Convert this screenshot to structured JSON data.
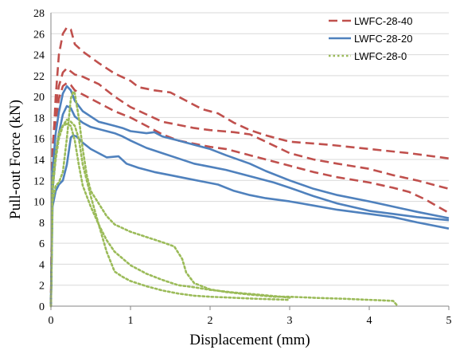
{
  "chart_data": {
    "type": "line",
    "xlabel": "Displacement (mm)",
    "ylabel": "Pull-out Force (kN)",
    "xlim": [
      0,
      5
    ],
    "ylim": [
      0,
      28
    ],
    "xticks": [
      "0",
      "1",
      "2",
      "3",
      "4",
      "5"
    ],
    "yticks": [
      "0",
      "2",
      "4",
      "6",
      "8",
      "10",
      "12",
      "14",
      "16",
      "18",
      "20",
      "22",
      "24",
      "26",
      "28"
    ],
    "grid": "horizontal",
    "legend_position": "top-right",
    "series": [
      {
        "name": "LWFC-28-40",
        "color": "#C0504D",
        "dash": "dashed",
        "curves": [
          [
            [
              0,
              0
            ],
            [
              0.02,
              14
            ],
            [
              0.06,
              20
            ],
            [
              0.1,
              24
            ],
            [
              0.15,
              26
            ],
            [
              0.2,
              26.6
            ],
            [
              0.25,
              26.4
            ],
            [
              0.3,
              25
            ],
            [
              0.4,
              24.3
            ],
            [
              0.6,
              23.2
            ],
            [
              0.8,
              22.2
            ],
            [
              1.0,
              21.5
            ],
            [
              1.1,
              20.9
            ],
            [
              1.3,
              20.6
            ],
            [
              1.5,
              20.4
            ],
            [
              1.7,
              19.6
            ],
            [
              1.9,
              18.8
            ],
            [
              2.1,
              18.4
            ],
            [
              2.3,
              17.5
            ],
            [
              2.5,
              16.8
            ],
            [
              2.7,
              16.3
            ],
            [
              3.0,
              15.7
            ],
            [
              3.5,
              15.4
            ],
            [
              4.0,
              15.0
            ],
            [
              4.5,
              14.6
            ],
            [
              5.0,
              14.1
            ]
          ],
          [
            [
              0,
              0
            ],
            [
              0.02,
              15
            ],
            [
              0.06,
              19
            ],
            [
              0.1,
              21
            ],
            [
              0.15,
              22.3
            ],
            [
              0.2,
              22.7
            ],
            [
              0.25,
              22.4
            ],
            [
              0.3,
              22.1
            ],
            [
              0.4,
              21.9
            ],
            [
              0.6,
              21.2
            ],
            [
              0.8,
              20
            ],
            [
              1.0,
              19
            ],
            [
              1.2,
              18.3
            ],
            [
              1.4,
              17.6
            ],
            [
              1.6,
              17.3
            ],
            [
              1.8,
              17.0
            ],
            [
              2.0,
              16.8
            ],
            [
              2.3,
              16.6
            ],
            [
              2.5,
              16.4
            ],
            [
              2.7,
              15.7
            ],
            [
              3.0,
              14.6
            ],
            [
              3.3,
              14.0
            ],
            [
              3.6,
              13.6
            ],
            [
              4.0,
              13.1
            ],
            [
              4.3,
              12.5
            ],
            [
              4.6,
              12.0
            ],
            [
              5.0,
              11.2
            ]
          ],
          [
            [
              0,
              0
            ],
            [
              0.02,
              14
            ],
            [
              0.06,
              17.5
            ],
            [
              0.1,
              19.8
            ],
            [
              0.15,
              21
            ],
            [
              0.2,
              21.3
            ],
            [
              0.25,
              21.1
            ],
            [
              0.3,
              20.6
            ],
            [
              0.4,
              20.2
            ],
            [
              0.6,
              19.4
            ],
            [
              0.8,
              18.6
            ],
            [
              1.0,
              18.0
            ],
            [
              1.2,
              17.2
            ],
            [
              1.4,
              16.4
            ],
            [
              1.6,
              15.8
            ],
            [
              1.8,
              15.5
            ],
            [
              2.0,
              15.2
            ],
            [
              2.2,
              15.0
            ],
            [
              2.5,
              14.4
            ],
            [
              2.7,
              14.0
            ],
            [
              3.0,
              13.4
            ],
            [
              3.3,
              12.8
            ],
            [
              3.6,
              12.3
            ],
            [
              4.0,
              11.8
            ],
            [
              4.3,
              11.3
            ],
            [
              4.5,
              10.9
            ],
            [
              4.7,
              10.2
            ],
            [
              5.0,
              8.9
            ]
          ]
        ]
      },
      {
        "name": "LWFC-28-20",
        "color": "#4F81BD",
        "dash": "solid",
        "curves": [
          [
            [
              0,
              0
            ],
            [
              0.02,
              13
            ],
            [
              0.06,
              16.5
            ],
            [
              0.1,
              18.5
            ],
            [
              0.15,
              20.3
            ],
            [
              0.2,
              21
            ],
            [
              0.25,
              20.6
            ],
            [
              0.3,
              19.6
            ],
            [
              0.4,
              18.6
            ],
            [
              0.5,
              18.1
            ],
            [
              0.6,
              17.6
            ],
            [
              0.7,
              17.4
            ],
            [
              0.8,
              17.2
            ],
            [
              0.9,
              17
            ],
            [
              1.0,
              16.7
            ],
            [
              1.2,
              16.5
            ],
            [
              1.3,
              16.6
            ],
            [
              1.4,
              16.2
            ],
            [
              1.6,
              15.8
            ],
            [
              1.8,
              15.4
            ],
            [
              2.0,
              15.0
            ],
            [
              2.2,
              14.4
            ],
            [
              2.5,
              13.6
            ],
            [
              2.7,
              12.9
            ],
            [
              3.0,
              12.0
            ],
            [
              3.3,
              11.2
            ],
            [
              3.6,
              10.6
            ],
            [
              4.0,
              10.0
            ],
            [
              4.3,
              9.5
            ],
            [
              4.6,
              9.0
            ],
            [
              5.0,
              8.4
            ]
          ],
          [
            [
              0,
              0
            ],
            [
              0.02,
              11
            ],
            [
              0.06,
              14.5
            ],
            [
              0.1,
              16.5
            ],
            [
              0.15,
              18.3
            ],
            [
              0.2,
              19.1
            ],
            [
              0.25,
              18.9
            ],
            [
              0.3,
              18.1
            ],
            [
              0.4,
              17.5
            ],
            [
              0.5,
              17.1
            ],
            [
              0.6,
              16.9
            ],
            [
              0.7,
              16.7
            ],
            [
              0.8,
              16.5
            ],
            [
              0.9,
              16.2
            ],
            [
              1.0,
              15.8
            ],
            [
              1.2,
              15.1
            ],
            [
              1.4,
              14.6
            ],
            [
              1.6,
              14.1
            ],
            [
              1.8,
              13.6
            ],
            [
              2.0,
              13.3
            ],
            [
              2.2,
              13.0
            ],
            [
              2.5,
              12.4
            ],
            [
              2.8,
              11.8
            ],
            [
              3.0,
              11.3
            ],
            [
              3.3,
              10.5
            ],
            [
              3.6,
              9.8
            ],
            [
              4.0,
              9.1
            ],
            [
              4.3,
              8.8
            ],
            [
              4.6,
              8.5
            ],
            [
              5.0,
              8.2
            ]
          ],
          [
            [
              0,
              0
            ],
            [
              0.02,
              9.5
            ],
            [
              0.06,
              11
            ],
            [
              0.1,
              11.6
            ],
            [
              0.15,
              12
            ],
            [
              0.2,
              13.5
            ],
            [
              0.25,
              16.1
            ],
            [
              0.28,
              16.3
            ],
            [
              0.32,
              16.2
            ],
            [
              0.4,
              15.6
            ],
            [
              0.5,
              15.0
            ],
            [
              0.6,
              14.6
            ],
            [
              0.7,
              14.2
            ],
            [
              0.85,
              14.3
            ],
            [
              0.95,
              13.6
            ],
            [
              1.1,
              13.2
            ],
            [
              1.3,
              12.8
            ],
            [
              1.5,
              12.5
            ],
            [
              1.7,
              12.2
            ],
            [
              1.9,
              11.9
            ],
            [
              2.1,
              11.6
            ],
            [
              2.3,
              11.0
            ],
            [
              2.5,
              10.6
            ],
            [
              2.7,
              10.3
            ],
            [
              3.0,
              10.0
            ],
            [
              3.3,
              9.6
            ],
            [
              3.6,
              9.2
            ],
            [
              4.0,
              8.8
            ],
            [
              4.3,
              8.5
            ],
            [
              4.6,
              8.0
            ],
            [
              5.0,
              7.4
            ]
          ]
        ]
      },
      {
        "name": "LWFC-28-0",
        "color": "#9BBB59",
        "dash": "dotted",
        "curves": [
          [
            [
              0,
              0
            ],
            [
              0.02,
              10
            ],
            [
              0.06,
              11.5
            ],
            [
              0.1,
              11.8
            ],
            [
              0.15,
              12.8
            ],
            [
              0.2,
              16
            ],
            [
              0.25,
              19.8
            ],
            [
              0.28,
              20.5
            ],
            [
              0.3,
              20.3
            ],
            [
              0.35,
              18
            ],
            [
              0.4,
              15
            ],
            [
              0.45,
              12.5
            ],
            [
              0.5,
              11
            ],
            [
              0.6,
              9.8
            ],
            [
              0.7,
              8.6
            ],
            [
              0.8,
              7.8
            ],
            [
              1.0,
              7.1
            ],
            [
              1.2,
              6.6
            ],
            [
              1.4,
              6.1
            ],
            [
              1.55,
              5.7
            ],
            [
              1.65,
              4.5
            ],
            [
              1.7,
              3.2
            ],
            [
              1.8,
              2.2
            ],
            [
              2.0,
              1.6
            ],
            [
              2.2,
              1.35
            ],
            [
              2.5,
              1.1
            ],
            [
              2.8,
              0.9
            ],
            [
              3.0,
              0.9
            ],
            [
              3.3,
              0.8
            ],
            [
              3.7,
              0.7
            ],
            [
              4.0,
              0.6
            ],
            [
              4.3,
              0.5
            ],
            [
              4.36,
              0
            ]
          ],
          [
            [
              0,
              0
            ],
            [
              0.02,
              11
            ],
            [
              0.06,
              14
            ],
            [
              0.1,
              16
            ],
            [
              0.15,
              17.2
            ],
            [
              0.2,
              17.8
            ],
            [
              0.25,
              17.6
            ],
            [
              0.3,
              17.2
            ],
            [
              0.35,
              16
            ],
            [
              0.4,
              13.5
            ],
            [
              0.5,
              10.5
            ],
            [
              0.6,
              7.8
            ],
            [
              0.7,
              5.2
            ],
            [
              0.8,
              3.3
            ],
            [
              0.9,
              2.8
            ],
            [
              1.0,
              2.4
            ],
            [
              1.2,
              1.9
            ],
            [
              1.4,
              1.5
            ],
            [
              1.6,
              1.2
            ],
            [
              1.8,
              1.0
            ],
            [
              2.0,
              0.9
            ],
            [
              2.3,
              0.8
            ],
            [
              2.6,
              0.7
            ],
            [
              3.0,
              0.6
            ]
          ],
          [
            [
              0,
              0
            ],
            [
              0.02,
              12
            ],
            [
              0.06,
              14.5
            ],
            [
              0.1,
              16.5
            ],
            [
              0.15,
              17.2
            ],
            [
              0.2,
              17.4
            ],
            [
              0.25,
              17.2
            ],
            [
              0.3,
              15.8
            ],
            [
              0.35,
              13.5
            ],
            [
              0.4,
              11.5
            ],
            [
              0.5,
              9.5
            ],
            [
              0.6,
              7.8
            ],
            [
              0.7,
              6.3
            ],
            [
              0.8,
              5.2
            ],
            [
              1.0,
              3.9
            ],
            [
              1.2,
              3.1
            ],
            [
              1.4,
              2.5
            ],
            [
              1.6,
              2.0
            ],
            [
              1.8,
              1.8
            ],
            [
              2.0,
              1.55
            ],
            [
              2.3,
              1.3
            ],
            [
              2.6,
              1.1
            ],
            [
              2.9,
              0.9
            ],
            [
              3.0,
              0.8
            ]
          ]
        ]
      }
    ]
  }
}
